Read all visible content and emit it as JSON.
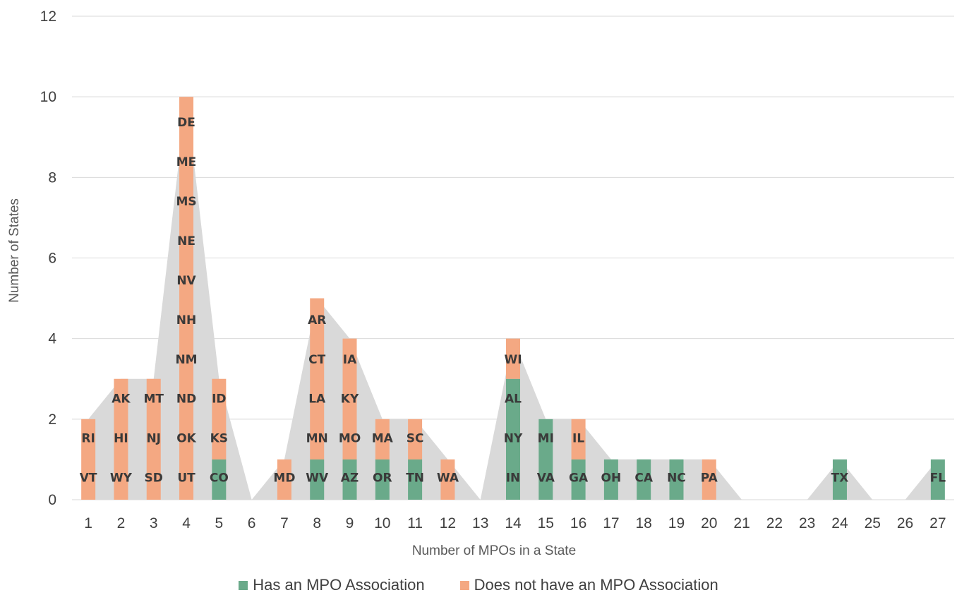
{
  "chart_data": {
    "type": "bar",
    "stacked": true,
    "xlabel": "Number of MPOs in a State",
    "ylabel": "Number of States",
    "ylim": [
      0,
      12
    ],
    "yticks": [
      "0",
      "2",
      "4",
      "6",
      "8",
      "10",
      "12"
    ],
    "categories": [
      "1",
      "2",
      "3",
      "4",
      "5",
      "6",
      "7",
      "8",
      "9",
      "10",
      "11",
      "12",
      "13",
      "14",
      "15",
      "16",
      "17",
      "18",
      "19",
      "20",
      "21",
      "22",
      "23",
      "24",
      "25",
      "26",
      "27"
    ],
    "series": [
      {
        "name": "Has an MPO Association",
        "color": "#6aaa8a",
        "values": [
          0,
          0,
          0,
          0,
          1,
          0,
          0,
          1,
          1,
          1,
          1,
          0,
          0,
          3,
          2,
          1,
          1,
          1,
          1,
          0,
          0,
          0,
          0,
          1,
          0,
          0,
          1
        ]
      },
      {
        "name": "Does not have an MPO Association",
        "color": "#f4a882",
        "values": [
          2,
          3,
          3,
          10,
          2,
          0,
          1,
          4,
          3,
          1,
          1,
          1,
          0,
          1,
          0,
          1,
          0,
          0,
          0,
          1,
          0,
          0,
          0,
          0,
          0,
          0,
          0
        ]
      }
    ],
    "area_total": {
      "color": "#d9d9d9",
      "values": [
        2,
        3,
        3,
        10,
        3,
        0,
        1,
        5,
        4,
        2,
        2,
        1,
        0,
        4,
        2,
        2,
        1,
        1,
        1,
        1,
        0,
        0,
        0,
        1,
        0,
        0,
        1
      ]
    },
    "labels": [
      [
        "VT",
        "RI"
      ],
      [
        "WY",
        "HI",
        "AK"
      ],
      [
        "SD",
        "NJ",
        "MT"
      ],
      [
        "UT",
        "OK",
        "ND",
        "NM",
        "NH",
        "NV",
        "NE",
        "MS",
        "ME",
        "DE"
      ],
      [
        "CO",
        "KS",
        "ID"
      ],
      [],
      [
        "MD"
      ],
      [
        "WV",
        "MN",
        "LA",
        "CT",
        "AR"
      ],
      [
        "AZ",
        "MO",
        "KY",
        "IA"
      ],
      [
        "OR",
        "MA"
      ],
      [
        "TN",
        "SC"
      ],
      [
        "WA"
      ],
      [],
      [
        "IN",
        "NY",
        "AL",
        "WI"
      ],
      [
        "VA",
        "MI"
      ],
      [
        "GA",
        "IL"
      ],
      [
        "OH"
      ],
      [
        "CA"
      ],
      [
        "NC"
      ],
      [
        "PA"
      ],
      [],
      [],
      [],
      [
        "TX"
      ],
      [],
      [],
      [
        "FL"
      ]
    ],
    "legend_position": "bottom",
    "grid": true
  }
}
